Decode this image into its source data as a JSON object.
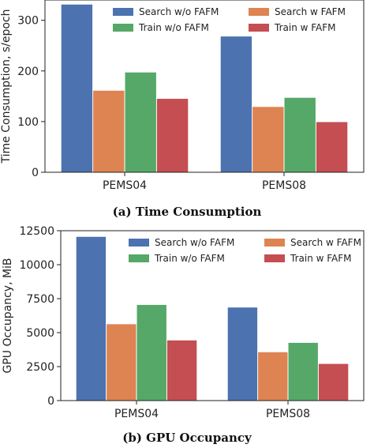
{
  "chart_data": [
    {
      "type": "bar",
      "caption": "(a) Time Consumption",
      "ylabel": "Time Consumption, s/epoch",
      "xlabel": "",
      "categories": [
        "PEMS04",
        "PEMS08"
      ],
      "ylim": [
        0,
        340
      ],
      "yticks": [
        0,
        100,
        200,
        300
      ],
      "legend_position": "top-right",
      "series": [
        {
          "name": "Search w/o FAFM",
          "color": "#4c72b0",
          "values": [
            331,
            268
          ]
        },
        {
          "name": "Search w FAFM",
          "color": "#dd8452",
          "values": [
            161,
            129
          ]
        },
        {
          "name": "Train w/o FAFM",
          "color": "#55a868",
          "values": [
            197,
            147
          ]
        },
        {
          "name": "Train w FAFM",
          "color": "#c44e52",
          "values": [
            145,
            99
          ]
        }
      ]
    },
    {
      "type": "bar",
      "caption": "(b) GPU Occupancy",
      "ylabel": "GPU Occupancy, MiB",
      "xlabel": "",
      "categories": [
        "PEMS04",
        "PEMS08"
      ],
      "ylim": [
        0,
        12500
      ],
      "yticks": [
        0,
        2500,
        5000,
        7500,
        10000,
        12500
      ],
      "legend_position": "top-right",
      "series": [
        {
          "name": "Search w/o FAFM",
          "color": "#4c72b0",
          "values": [
            12050,
            6850
          ]
        },
        {
          "name": "Search w FAFM",
          "color": "#dd8452",
          "values": [
            5620,
            3560
          ]
        },
        {
          "name": "Train w/o FAFM",
          "color": "#55a868",
          "values": [
            7040,
            4250
          ]
        },
        {
          "name": "Train w FAFM",
          "color": "#c44e52",
          "values": [
            4430,
            2700
          ]
        }
      ]
    }
  ]
}
